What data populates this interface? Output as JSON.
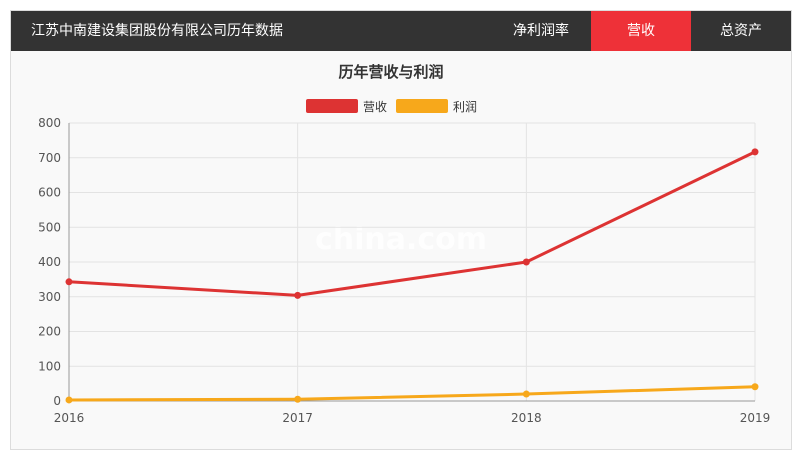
{
  "header": {
    "title": "江苏中南建设集团股份有限公司历年数据",
    "tabs": [
      {
        "label": "净利润率",
        "active": false
      },
      {
        "label": "营收",
        "active": true
      },
      {
        "label": "总资产",
        "active": false
      }
    ]
  },
  "watermark": "china.com",
  "colors": {
    "accent": "#ee3138",
    "header_bg": "#333333",
    "revenue": "#dd3333",
    "profit": "#f7a81b"
  },
  "chart_data": {
    "type": "line",
    "title": "历年营收与利润",
    "categories": [
      "2016",
      "2017",
      "2018",
      "2019"
    ],
    "series": [
      {
        "name": "营收",
        "values": [
          343,
          304,
          400,
          717
        ]
      },
      {
        "name": "利润",
        "values": [
          3,
          5,
          20,
          41
        ]
      }
    ],
    "ylim": [
      0,
      800
    ],
    "yticks": [
      "0",
      "100",
      "200",
      "300",
      "400",
      "500",
      "600",
      "700",
      "800"
    ],
    "grid": true,
    "legend": "top-center"
  }
}
